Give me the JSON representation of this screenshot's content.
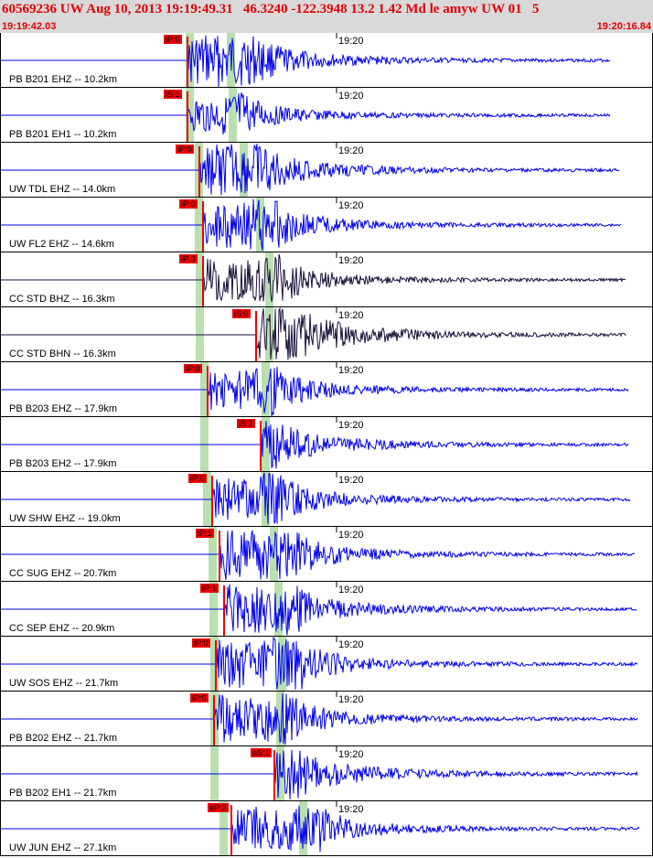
{
  "header": {
    "title": "60569236 UW Aug 10, 2013 19:19:49.31   46.3240 -122.3948 13.2 1.42 Md le amyw UW 01   5",
    "time_start": "19:19:42.03",
    "time_end": "19:20:16.84"
  },
  "colors": {
    "header_bg": "#d9d9d9",
    "header_text": "#e00000",
    "trace_blue": "#0000ee",
    "trace_dark": "#1a0f3a",
    "pick_red": "#ee0000",
    "phase_green": "#b8e0b0",
    "separator": "#000000"
  },
  "minute_tick": "19:20",
  "traces": [
    {
      "label": "PB B201 EHZ -- 10.2km",
      "pick": "iP:0",
      "color": "blue"
    },
    {
      "label": "PB B201 EH1 -- 10.2km",
      "pick": "iS:1",
      "color": "blue"
    },
    {
      "label": "UW TDL EHZ -- 14.0km",
      "pick": "iP:0",
      "color": "blue"
    },
    {
      "label": "UW FL2 EHZ -- 14.6km",
      "pick": "iP:0",
      "color": "blue"
    },
    {
      "label": "CC STD BHZ -- 16.3km",
      "pick": "iP:0",
      "color": "dark"
    },
    {
      "label": "CC STD BHN -- 16.3km",
      "pick": "iS:0",
      "color": "dark"
    },
    {
      "label": "PB B203 EHZ -- 17.9km",
      "pick": "iP:0",
      "color": "blue"
    },
    {
      "label": "PB B203 EH2 -- 17.9km",
      "pick": "iS:1",
      "color": "blue"
    },
    {
      "label": "UW SHW EHZ -- 19.0km",
      "pick": "iP:0",
      "color": "blue"
    },
    {
      "label": "CC SUG EHZ -- 20.7km",
      "pick": "iP:1",
      "color": "blue"
    },
    {
      "label": "CC SEP EHZ -- 20.9km",
      "pick": "iP:1",
      "color": "blue"
    },
    {
      "label": "UW SOS EHZ -- 21.7km",
      "pick": "iP:0",
      "color": "blue"
    },
    {
      "label": "PB B202 EHZ -- 21.7km",
      "pick": "iP:0",
      "color": "blue"
    },
    {
      "label": "PB B202 EH1 -- 21.7km",
      "pick": "eS:1",
      "color": "blue"
    },
    {
      "label": "UW JUN EHZ -- 27.1km",
      "pick": "eP:2",
      "color": "blue"
    }
  ]
}
